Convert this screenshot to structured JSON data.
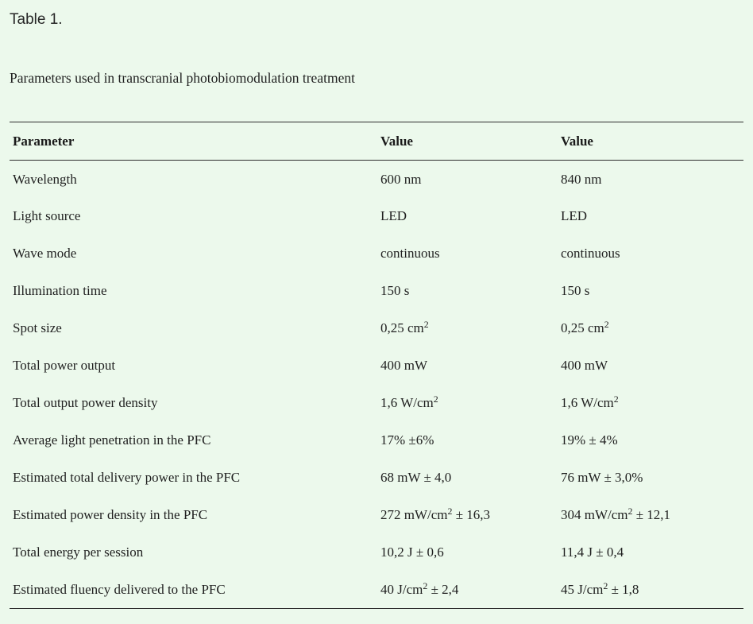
{
  "header": {
    "table_label": "Table 1.",
    "caption": "Parameters used in transcranial photobiomodulation treatment"
  },
  "table": {
    "columns": [
      "Parameter",
      "Value",
      "Value"
    ],
    "rows": [
      {
        "parameter": "Wavelength",
        "value1": "600 nm",
        "value2": "840 nm"
      },
      {
        "parameter": "Light source",
        "value1": "LED",
        "value2": "LED"
      },
      {
        "parameter": "Wave mode",
        "value1": "continuous",
        "value2": "continuous"
      },
      {
        "parameter": "Illumination time",
        "value1": "150 s",
        "value2": "150 s"
      },
      {
        "parameter": "Spot size",
        "value1": "0,25 cm^2",
        "value2": "0,25 cm^2"
      },
      {
        "parameter": "Total power output",
        "value1": "400 mW",
        "value2": "400 mW"
      },
      {
        "parameter": "Total output power density",
        "value1": "1,6 W/cm^2",
        "value2": "1,6 W/cm^2"
      },
      {
        "parameter": "Average light penetration in the PFC",
        "value1": "17% ±6%",
        "value2": "19% ± 4%"
      },
      {
        "parameter": "Estimated total delivery power in the PFC",
        "value1": "68 mW ± 4,0",
        "value2": "76 mW ± 3,0%"
      },
      {
        "parameter": "Estimated power density in the PFC",
        "value1": "272 mW/cm^2 ± 16,3",
        "value2": "304 mW/cm^2 ± 12,1"
      },
      {
        "parameter": "Total energy per session",
        "value1": "10,2 J ± 0,6",
        "value2": "11,4 J ± 0,4"
      },
      {
        "parameter": "Estimated fluency delivered to the PFC",
        "value1": "40 J/cm^2 ± 2,4",
        "value2": "45 J/cm^2 ± 1,8"
      }
    ]
  },
  "colors": {
    "background": "#ecf9ec",
    "text": "#1f1f1f",
    "rule": "#2e2e2e"
  }
}
